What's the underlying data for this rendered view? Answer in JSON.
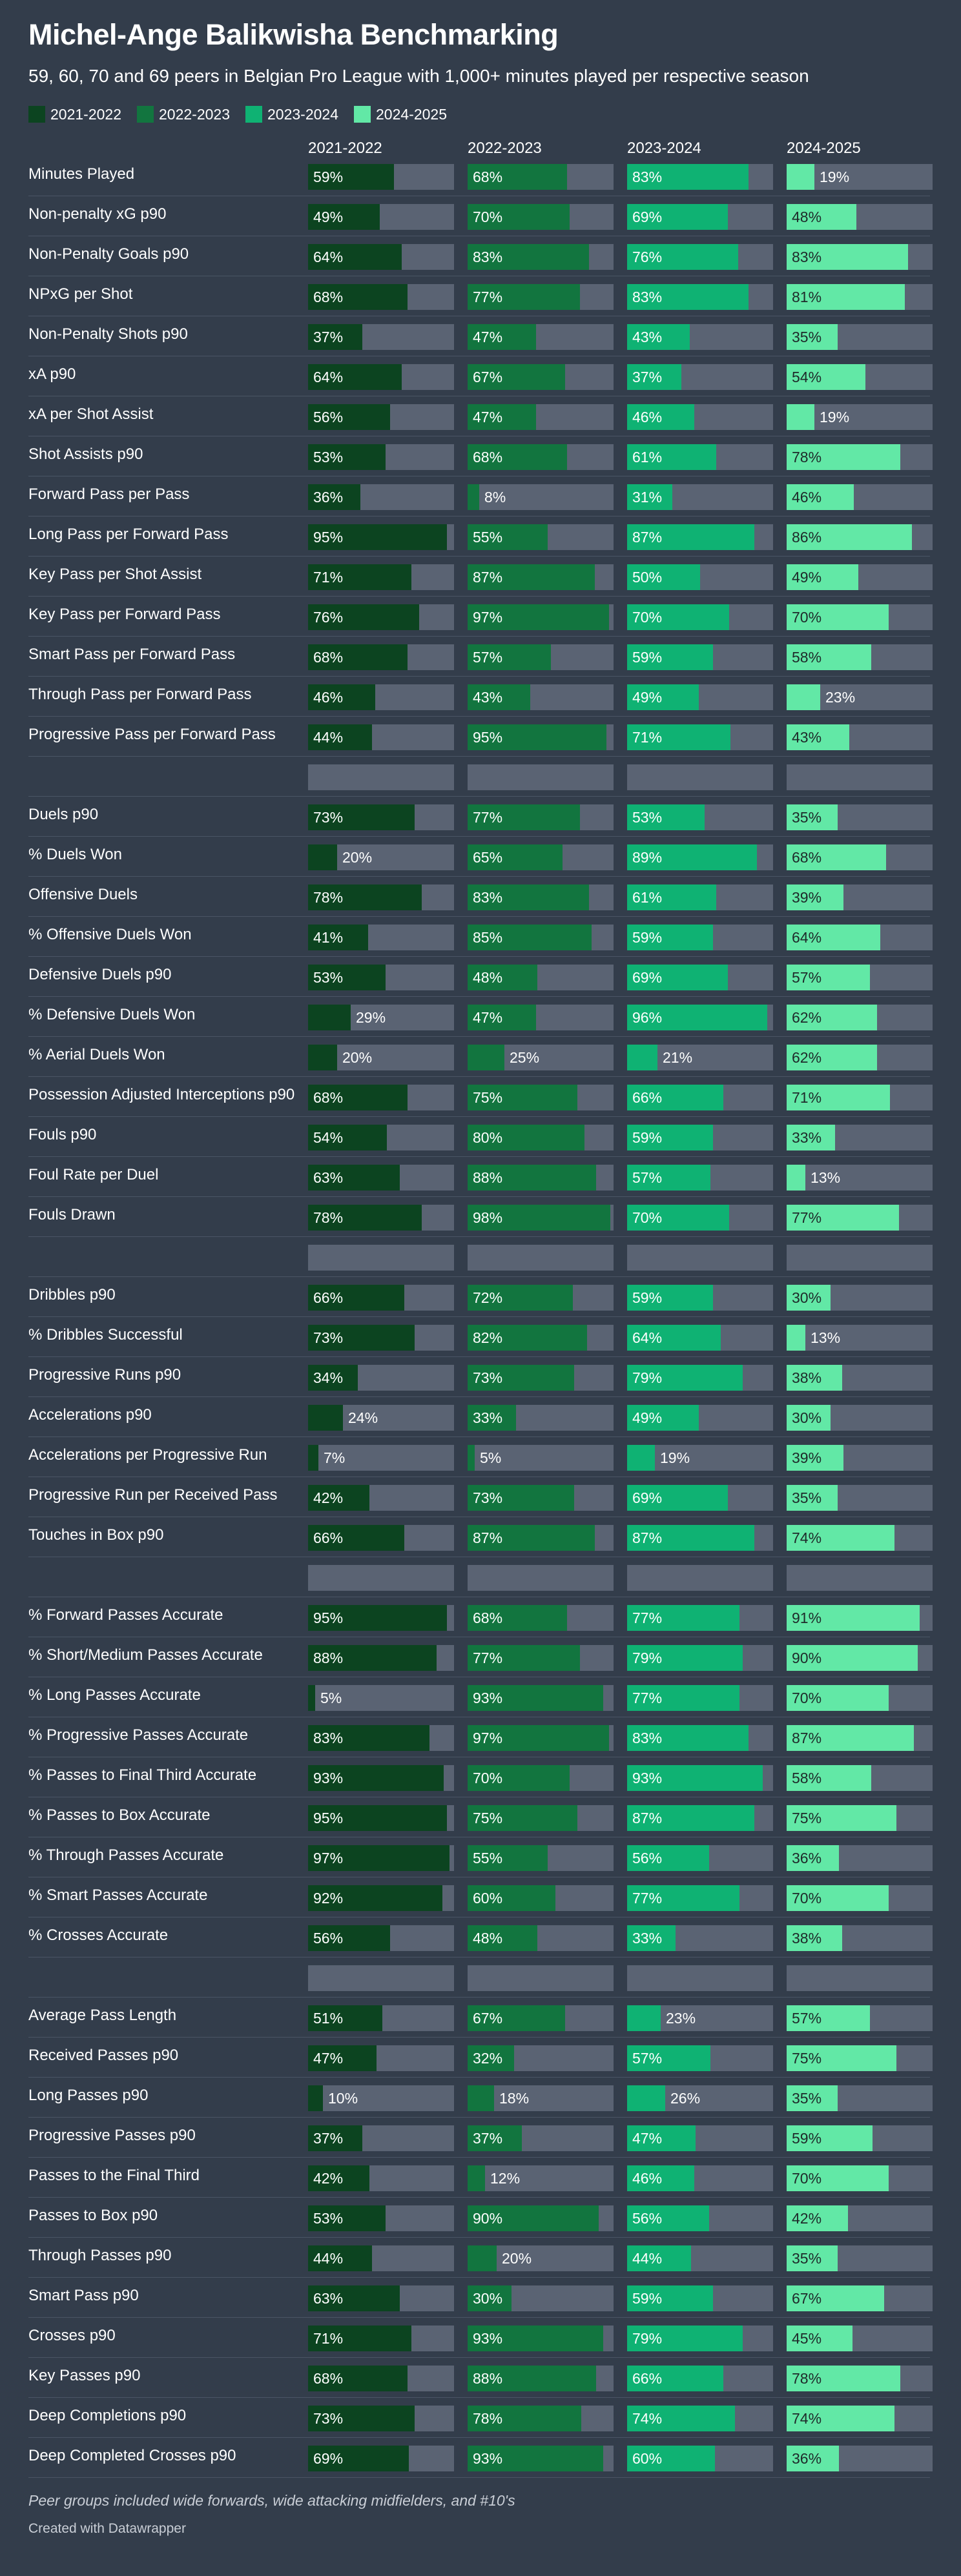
{
  "header": {
    "title": "Michel-Ange Balikwisha Benchmarking",
    "subtitle": "59, 60, 70 and 69 peers in Belgian Pro League with 1,000+ minutes played per respective season"
  },
  "footer": {
    "note": "Peer groups included wide forwards, wide attacking midfielders, and #10's",
    "credit": "Created with Datawrapper"
  },
  "colors": {
    "background": "#333d4b",
    "bar_track": "#5a6373",
    "series": [
      "#0c4420",
      "#12753f",
      "#0fb273",
      "#62e8a6"
    ]
  },
  "chart_data": {
    "type": "bar",
    "unit": "%",
    "xlim": [
      0,
      100
    ],
    "legend_position": "top-left",
    "series": [
      {
        "name": "2021-2022"
      },
      {
        "name": "2022-2023"
      },
      {
        "name": "2023-2024"
      },
      {
        "name": "2024-2025"
      }
    ],
    "rows": [
      {
        "label": "Minutes Played",
        "values": [
          59,
          68,
          83,
          19
        ]
      },
      {
        "label": "Non-penalty xG p90",
        "values": [
          49,
          70,
          69,
          48
        ]
      },
      {
        "label": "Non-Penalty Goals p90",
        "values": [
          64,
          83,
          76,
          83
        ]
      },
      {
        "label": "NPxG per Shot",
        "values": [
          68,
          77,
          83,
          81
        ]
      },
      {
        "label": "Non-Penalty Shots p90",
        "values": [
          37,
          47,
          43,
          35
        ]
      },
      {
        "label": "xA p90",
        "values": [
          64,
          67,
          37,
          54
        ]
      },
      {
        "label": "xA per Shot Assist",
        "values": [
          56,
          47,
          46,
          19
        ]
      },
      {
        "label": "Shot Assists p90",
        "values": [
          53,
          68,
          61,
          78
        ]
      },
      {
        "label": "Forward Pass per Pass",
        "values": [
          36,
          8,
          31,
          46
        ]
      },
      {
        "label": "Long Pass per Forward Pass",
        "values": [
          95,
          55,
          87,
          86
        ]
      },
      {
        "label": "Key Pass per Shot Assist",
        "values": [
          71,
          87,
          50,
          49
        ]
      },
      {
        "label": "Key Pass per Forward Pass",
        "values": [
          76,
          97,
          70,
          70
        ]
      },
      {
        "label": "Smart Pass per Forward Pass",
        "values": [
          68,
          57,
          59,
          58
        ]
      },
      {
        "label": "Through Pass per Forward Pass",
        "values": [
          46,
          43,
          49,
          23
        ]
      },
      {
        "label": "Progressive Pass per Forward Pass",
        "values": [
          44,
          95,
          71,
          43
        ]
      },
      {
        "label": "",
        "values": [
          null,
          null,
          null,
          null
        ]
      },
      {
        "label": "Duels p90",
        "values": [
          73,
          77,
          53,
          35
        ]
      },
      {
        "label": "% Duels Won",
        "values": [
          20,
          65,
          89,
          68
        ]
      },
      {
        "label": "Offensive Duels",
        "values": [
          78,
          83,
          61,
          39
        ]
      },
      {
        "label": "% Offensive Duels Won",
        "values": [
          41,
          85,
          59,
          64
        ]
      },
      {
        "label": "Defensive Duels p90",
        "values": [
          53,
          48,
          69,
          57
        ]
      },
      {
        "label": "% Defensive Duels Won",
        "values": [
          29,
          47,
          96,
          62
        ]
      },
      {
        "label": "% Aerial Duels Won",
        "values": [
          20,
          25,
          21,
          62
        ]
      },
      {
        "label": "Possession Adjusted Interceptions p90",
        "values": [
          68,
          75,
          66,
          71
        ]
      },
      {
        "label": "Fouls p90",
        "values": [
          54,
          80,
          59,
          33
        ]
      },
      {
        "label": "Foul Rate per Duel",
        "values": [
          63,
          88,
          57,
          13
        ]
      },
      {
        "label": "Fouls Drawn",
        "values": [
          78,
          98,
          70,
          77
        ]
      },
      {
        "label": "",
        "values": [
          null,
          null,
          null,
          null
        ]
      },
      {
        "label": "Dribbles p90",
        "values": [
          66,
          72,
          59,
          30
        ]
      },
      {
        "label": "% Dribbles Successful",
        "values": [
          73,
          82,
          64,
          13
        ]
      },
      {
        "label": "Progressive Runs p90",
        "values": [
          34,
          73,
          79,
          38
        ]
      },
      {
        "label": "Accelerations p90",
        "values": [
          24,
          33,
          49,
          30
        ]
      },
      {
        "label": "Accelerations per Progressive Run",
        "values": [
          7,
          5,
          19,
          39
        ]
      },
      {
        "label": "Progressive Run per Received Pass",
        "values": [
          42,
          73,
          69,
          35
        ]
      },
      {
        "label": "Touches in Box p90",
        "values": [
          66,
          87,
          87,
          74
        ]
      },
      {
        "label": "",
        "values": [
          null,
          null,
          null,
          null
        ]
      },
      {
        "label": "% Forward Passes Accurate",
        "values": [
          95,
          68,
          77,
          91
        ]
      },
      {
        "label": "% Short/Medium Passes Accurate",
        "values": [
          88,
          77,
          79,
          90
        ]
      },
      {
        "label": "% Long Passes Accurate",
        "values": [
          5,
          93,
          77,
          70
        ]
      },
      {
        "label": "% Progressive Passes Accurate",
        "values": [
          83,
          97,
          83,
          87
        ]
      },
      {
        "label": "% Passes to Final Third Accurate",
        "values": [
          93,
          70,
          93,
          58
        ]
      },
      {
        "label": "% Passes to Box Accurate",
        "values": [
          95,
          75,
          87,
          75
        ]
      },
      {
        "label": "% Through Passes Accurate",
        "values": [
          97,
          55,
          56,
          36
        ]
      },
      {
        "label": "% Smart Passes Accurate",
        "values": [
          92,
          60,
          77,
          70
        ]
      },
      {
        "label": "% Crosses Accurate",
        "values": [
          56,
          48,
          33,
          38
        ]
      },
      {
        "label": "",
        "values": [
          null,
          null,
          null,
          null
        ]
      },
      {
        "label": "Average Pass Length",
        "values": [
          51,
          67,
          23,
          57
        ]
      },
      {
        "label": "Received Passes p90",
        "values": [
          47,
          32,
          57,
          75
        ]
      },
      {
        "label": "Long Passes p90",
        "values": [
          10,
          18,
          26,
          35
        ]
      },
      {
        "label": "Progressive Passes p90",
        "values": [
          37,
          37,
          47,
          59
        ]
      },
      {
        "label": "Passes to the Final Third",
        "values": [
          42,
          12,
          46,
          70
        ]
      },
      {
        "label": "Passes to Box p90",
        "values": [
          53,
          90,
          56,
          42
        ]
      },
      {
        "label": "Through Passes p90",
        "values": [
          44,
          20,
          44,
          35
        ]
      },
      {
        "label": "Smart Pass p90",
        "values": [
          63,
          30,
          59,
          67
        ]
      },
      {
        "label": "Crosses p90",
        "values": [
          71,
          93,
          79,
          45
        ]
      },
      {
        "label": "Key Passes p90",
        "values": [
          68,
          88,
          66,
          78
        ]
      },
      {
        "label": "Deep Completions p90",
        "values": [
          73,
          78,
          74,
          74
        ]
      },
      {
        "label": "Deep Completed Crosses p90",
        "values": [
          69,
          93,
          60,
          36
        ]
      }
    ]
  }
}
